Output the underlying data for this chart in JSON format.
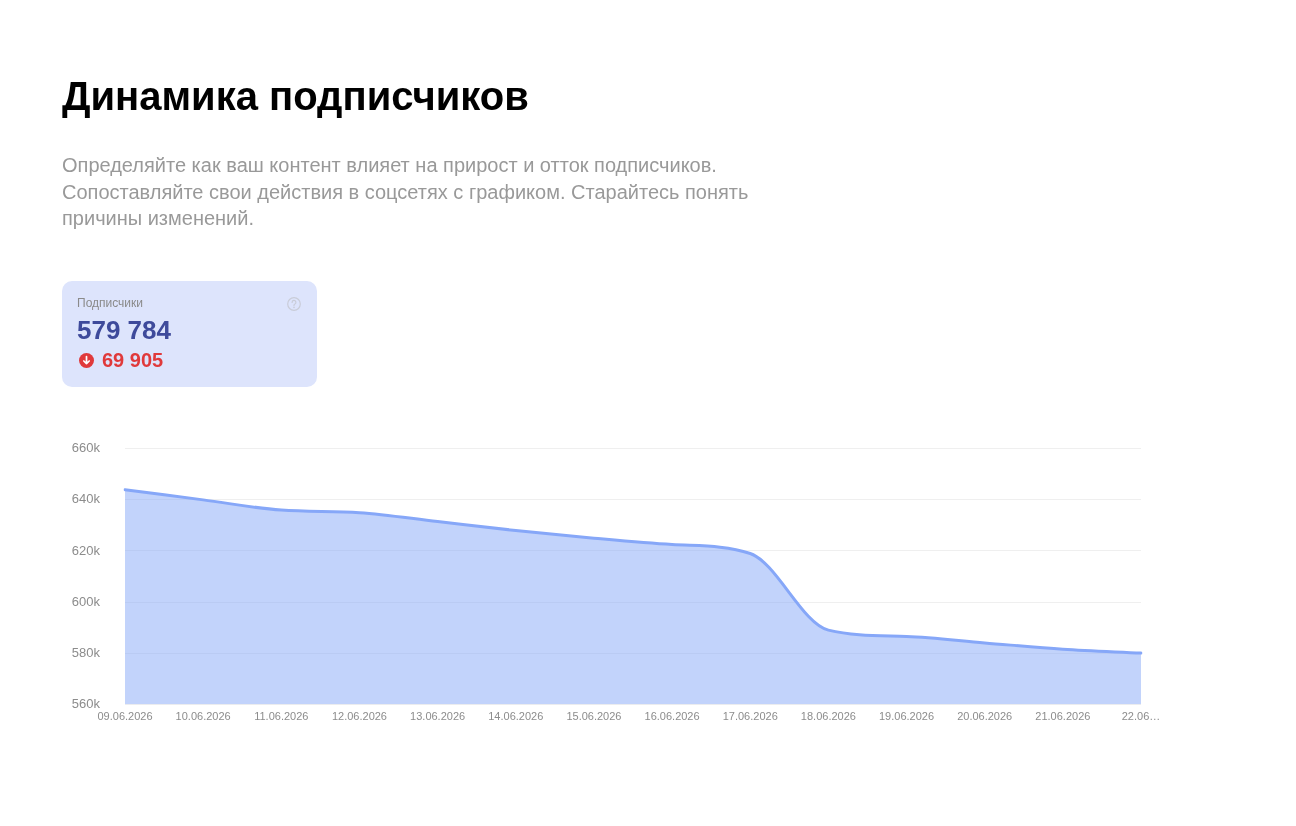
{
  "chart_data": {
    "type": "area",
    "title": "Динамика подписчиков",
    "subtitle": "Определяйте как ваш контент влияет на прирост и отток подписчиков. Сопоставляйте свои действия в соцсетях с графиком. Старайтесь понять причины изменений.",
    "annotations": [
      "Подписчики",
      "579 784",
      "69 905"
    ],
    "categories": [
      "09.06.2026",
      "10.06.2026",
      "11.06.2026",
      "12.06.2026",
      "13.06.2026",
      "14.06.2026",
      "15.06.2026",
      "16.06.2026",
      "17.06.2026",
      "18.06.2026",
      "19.06.2026",
      "20.06.2026",
      "21.06.2026",
      "22.06…"
    ],
    "series": [
      {
        "color": "#86a7f8",
        "values": [
          644000,
          640000,
          636000,
          635000,
          631500,
          628000,
          625000,
          622500,
          619000,
          589000,
          586500,
          584000,
          581500,
          580000
        ]
      }
    ],
    "ylim": [
      560000,
      660000
    ],
    "yticks": [
      {
        "value": 560000,
        "label": "560k"
      },
      {
        "value": 580000,
        "label": "580k"
      },
      {
        "value": 600000,
        "label": "600k"
      },
      {
        "value": 620000,
        "label": "620k"
      },
      {
        "value": 640000,
        "label": "640k"
      },
      {
        "value": 660000,
        "label": "660k"
      }
    ],
    "grid": "y"
  }
}
